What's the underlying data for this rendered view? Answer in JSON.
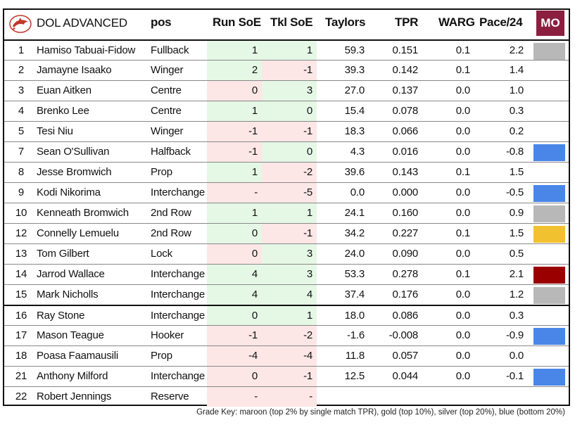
{
  "header": {
    "title": "DOL ADVANCED",
    "columns": [
      "pos",
      "Run SoE",
      "Tkl SoE",
      "Taylors",
      "TPR",
      "WARG",
      "Pace/24"
    ],
    "mo_label": "MO"
  },
  "colors": {
    "maroon": "#9b0000",
    "gold": "#f2c130",
    "silver": "#b8b8b8",
    "blue": "#4a86e8",
    "positive_cell": "#e5f7e5",
    "negative_cell": "#fde6e6",
    "mo_badge": "#8b1f3f"
  },
  "rows": [
    {
      "num": "1",
      "name": "Hamiso Tabuai-Fidow",
      "pos": "Fullback",
      "run": "1",
      "tkl": "1",
      "taylors": "59.3",
      "tpr": "0.151",
      "warg": "0.1",
      "pace": "2.2",
      "grade": "silver"
    },
    {
      "num": "2",
      "name": "Jamayne Isaako",
      "pos": "Winger",
      "run": "2",
      "tkl": "-1",
      "taylors": "39.3",
      "tpr": "0.142",
      "warg": "0.1",
      "pace": "1.4",
      "grade": ""
    },
    {
      "num": "3",
      "name": "Euan Aitken",
      "pos": "Centre",
      "run": "0",
      "tkl": "3",
      "taylors": "27.0",
      "tpr": "0.137",
      "warg": "0.0",
      "pace": "1.0",
      "grade": ""
    },
    {
      "num": "4",
      "name": "Brenko Lee",
      "pos": "Centre",
      "run": "1",
      "tkl": "0",
      "taylors": "15.4",
      "tpr": "0.078",
      "warg": "0.0",
      "pace": "0.3",
      "grade": ""
    },
    {
      "num": "5",
      "name": "Tesi Niu",
      "pos": "Winger",
      "run": "-1",
      "tkl": "-1",
      "taylors": "18.3",
      "tpr": "0.066",
      "warg": "0.0",
      "pace": "0.2",
      "grade": ""
    },
    {
      "num": "7",
      "name": "Sean O'Sullivan",
      "pos": "Halfback",
      "run": "-1",
      "tkl": "0",
      "taylors": "4.3",
      "tpr": "0.016",
      "warg": "0.0",
      "pace": "-0.8",
      "grade": "blue"
    },
    {
      "num": "8",
      "name": "Jesse Bromwich",
      "pos": "Prop",
      "run": "1",
      "tkl": "-2",
      "taylors": "39.6",
      "tpr": "0.143",
      "warg": "0.1",
      "pace": "1.5",
      "grade": ""
    },
    {
      "num": "9",
      "name": "Kodi Nikorima",
      "pos": "Interchange",
      "run": "-",
      "tkl": "-5",
      "taylors": "0.0",
      "tpr": "0.000",
      "warg": "0.0",
      "pace": "-0.5",
      "grade": "blue"
    },
    {
      "num": "10",
      "name": "Kenneath Bromwich",
      "pos": "2nd Row",
      "run": "1",
      "tkl": "1",
      "taylors": "24.1",
      "tpr": "0.160",
      "warg": "0.0",
      "pace": "0.9",
      "grade": "silver"
    },
    {
      "num": "12",
      "name": "Connelly Lemuelu",
      "pos": "2nd Row",
      "run": "0",
      "tkl": "-1",
      "taylors": "34.2",
      "tpr": "0.227",
      "warg": "0.1",
      "pace": "1.5",
      "grade": "gold"
    },
    {
      "num": "13",
      "name": "Tom Gilbert",
      "pos": "Lock",
      "run": "0",
      "tkl": "3",
      "taylors": "24.0",
      "tpr": "0.090",
      "warg": "0.0",
      "pace": "0.5",
      "grade": ""
    },
    {
      "num": "14",
      "name": "Jarrod Wallace",
      "pos": "Interchange",
      "run": "4",
      "tkl": "3",
      "taylors": "53.3",
      "tpr": "0.278",
      "warg": "0.1",
      "pace": "2.1",
      "grade": "maroon"
    },
    {
      "num": "15",
      "name": "Mark Nicholls",
      "pos": "Interchange",
      "run": "4",
      "tkl": "4",
      "taylors": "37.4",
      "tpr": "0.176",
      "warg": "0.0",
      "pace": "1.2",
      "grade": "silver"
    },
    {
      "num": "16",
      "name": "Ray Stone",
      "pos": "Interchange",
      "run": "0",
      "tkl": "1",
      "taylors": "18.0",
      "tpr": "0.086",
      "warg": "0.0",
      "pace": "0.3",
      "grade": ""
    },
    {
      "num": "17",
      "name": "Mason Teague",
      "pos": "Hooker",
      "run": "-1",
      "tkl": "-2",
      "taylors": "-1.6",
      "tpr": "-0.008",
      "warg": "0.0",
      "pace": "-0.9",
      "grade": "blue"
    },
    {
      "num": "18",
      "name": "Poasa Faamausili",
      "pos": "Prop",
      "run": "-4",
      "tkl": "-4",
      "taylors": "11.8",
      "tpr": "0.057",
      "warg": "0.0",
      "pace": "0.0",
      "grade": ""
    },
    {
      "num": "21",
      "name": "Anthony Milford",
      "pos": "Interchange",
      "run": "0",
      "tkl": "-1",
      "taylors": "12.5",
      "tpr": "0.044",
      "warg": "0.0",
      "pace": "-0.1",
      "grade": "blue"
    },
    {
      "num": "22",
      "name": "Robert Jennings",
      "pos": "Reserve",
      "run": "-",
      "tkl": "-",
      "taylors": "",
      "tpr": "",
      "warg": "",
      "pace": "",
      "grade": ""
    }
  ],
  "footer": {
    "grade_key": "Grade Key: maroon (top 2% by single match TPR), gold (top 10%), silver (top 20%), blue (bottom 20%)"
  }
}
